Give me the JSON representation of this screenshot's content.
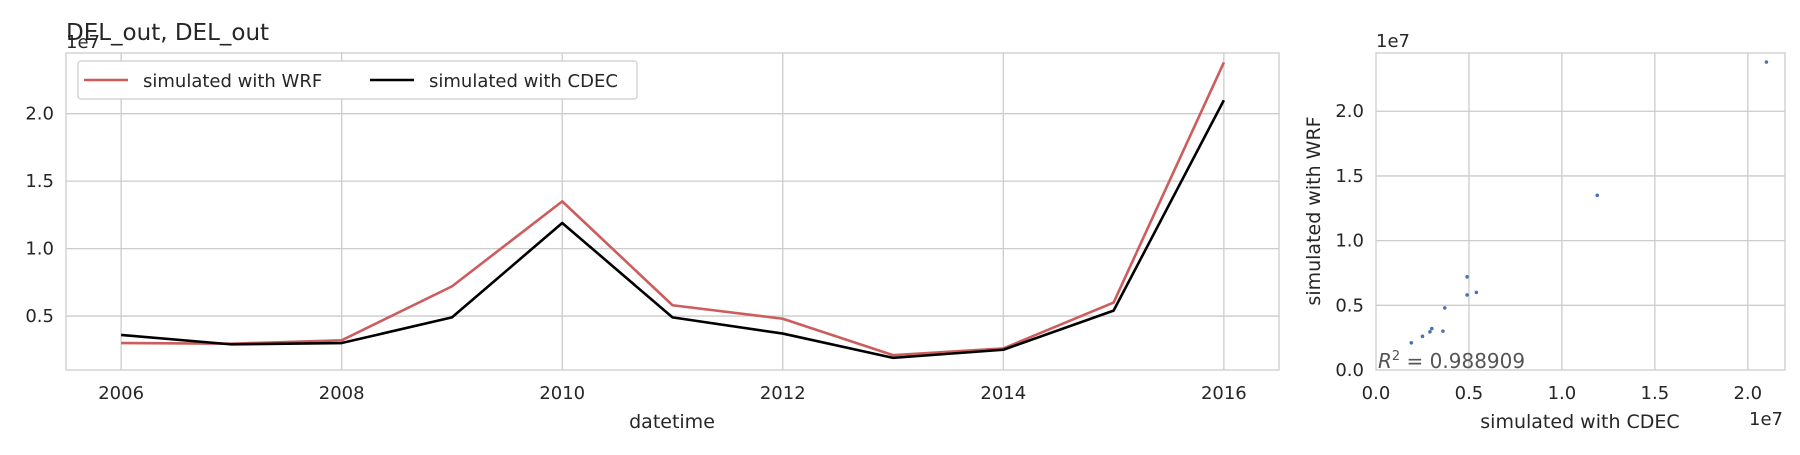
{
  "chart_data": [
    {
      "type": "line",
      "title": "DEL_out, DEL_out",
      "xlabel": "datetime",
      "ylabel": "",
      "y_offset_label": "1e7",
      "x": [
        2006,
        2007,
        2008,
        2009,
        2010,
        2011,
        2012,
        2013,
        2014,
        2015,
        2016
      ],
      "xticks": [
        "2006",
        "2008",
        "2010",
        "2012",
        "2014",
        "2016"
      ],
      "yticks": [
        "0.5",
        "1.0",
        "1.5",
        "2.0"
      ],
      "xlim": [
        2005.5,
        2016.5
      ],
      "ylim": [
        1000000,
        24500000
      ],
      "grid": true,
      "legend_placement": "top-left",
      "series": [
        {
          "name": "simulated with WRF",
          "color": "#cd5c5c",
          "values": [
            3000000,
            2950000,
            3200000,
            7200000,
            13500000,
            5800000,
            4800000,
            2100000,
            2600000,
            6000000,
            23800000
          ]
        },
        {
          "name": "simulated with CDEC",
          "color": "#000000",
          "values": [
            3600000,
            2900000,
            3000000,
            4900000,
            11900000,
            4900000,
            3700000,
            1900000,
            2500000,
            5400000,
            21000000
          ]
        }
      ]
    },
    {
      "type": "scatter",
      "title": "",
      "xlabel": "simulated with CDEC",
      "ylabel": "simulated with WRF",
      "x_offset_label": "1e7",
      "y_offset_label": "1e7",
      "annotation_prefix": "R",
      "annotation_sup": "2",
      "annotation_rest": " = 0.988909",
      "xticks": [
        "0.0",
        "0.5",
        "1.0",
        "1.5",
        "2.0"
      ],
      "yticks": [
        "0.0",
        "0.5",
        "1.0",
        "1.5",
        "2.0"
      ],
      "xlim": [
        0,
        22000000
      ],
      "ylim": [
        0,
        24500000
      ],
      "grid": true,
      "color": "#4c72b0",
      "points": [
        [
          3600000,
          3000000
        ],
        [
          2900000,
          2950000
        ],
        [
          3000000,
          3200000
        ],
        [
          4900000,
          7200000
        ],
        [
          11900000,
          13500000
        ],
        [
          4900000,
          5800000
        ],
        [
          3700000,
          4800000
        ],
        [
          1900000,
          2100000
        ],
        [
          2500000,
          2600000
        ],
        [
          5400000,
          6000000
        ],
        [
          21000000,
          23800000
        ]
      ]
    }
  ]
}
